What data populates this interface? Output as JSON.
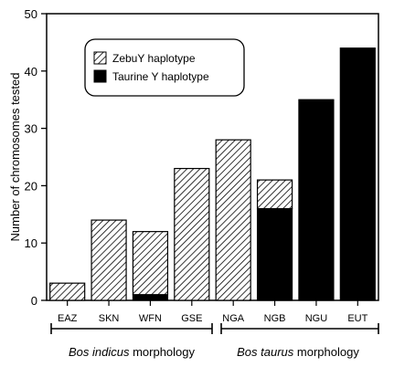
{
  "chart_data": {
    "type": "bar",
    "categories": [
      "EAZ",
      "SKN",
      "WFN",
      "GSE",
      "NGA",
      "NGB",
      "NGU",
      "EUT"
    ],
    "series": [
      {
        "name": "ZebuY haplotype",
        "values": [
          3,
          14,
          11,
          23,
          28,
          5,
          0,
          0
        ]
      },
      {
        "name": "Taurine Y haplotype",
        "values": [
          0,
          0,
          1,
          0,
          0,
          16,
          35,
          44
        ]
      }
    ],
    "stacked": true,
    "title": "",
    "xlabel": "",
    "ylabel": "Number of chromosomes tested",
    "ylim": [
      0,
      50
    ],
    "yticks": [
      0,
      10,
      20,
      30,
      40,
      50
    ],
    "legend_position": "top-left",
    "grid": false,
    "groups": [
      {
        "italic": "Bos indicus",
        "rest": " morphology",
        "categories": [
          "EAZ",
          "SKN",
          "WFN",
          "GSE"
        ]
      },
      {
        "italic": "Bos taurus",
        "rest": " morphology",
        "categories": [
          "NGA",
          "NGB",
          "NGU",
          "EUT"
        ]
      }
    ],
    "colors": {
      "zebu_fill": "hatched",
      "taurine_fill": "#000000",
      "frame": "#000000"
    }
  }
}
